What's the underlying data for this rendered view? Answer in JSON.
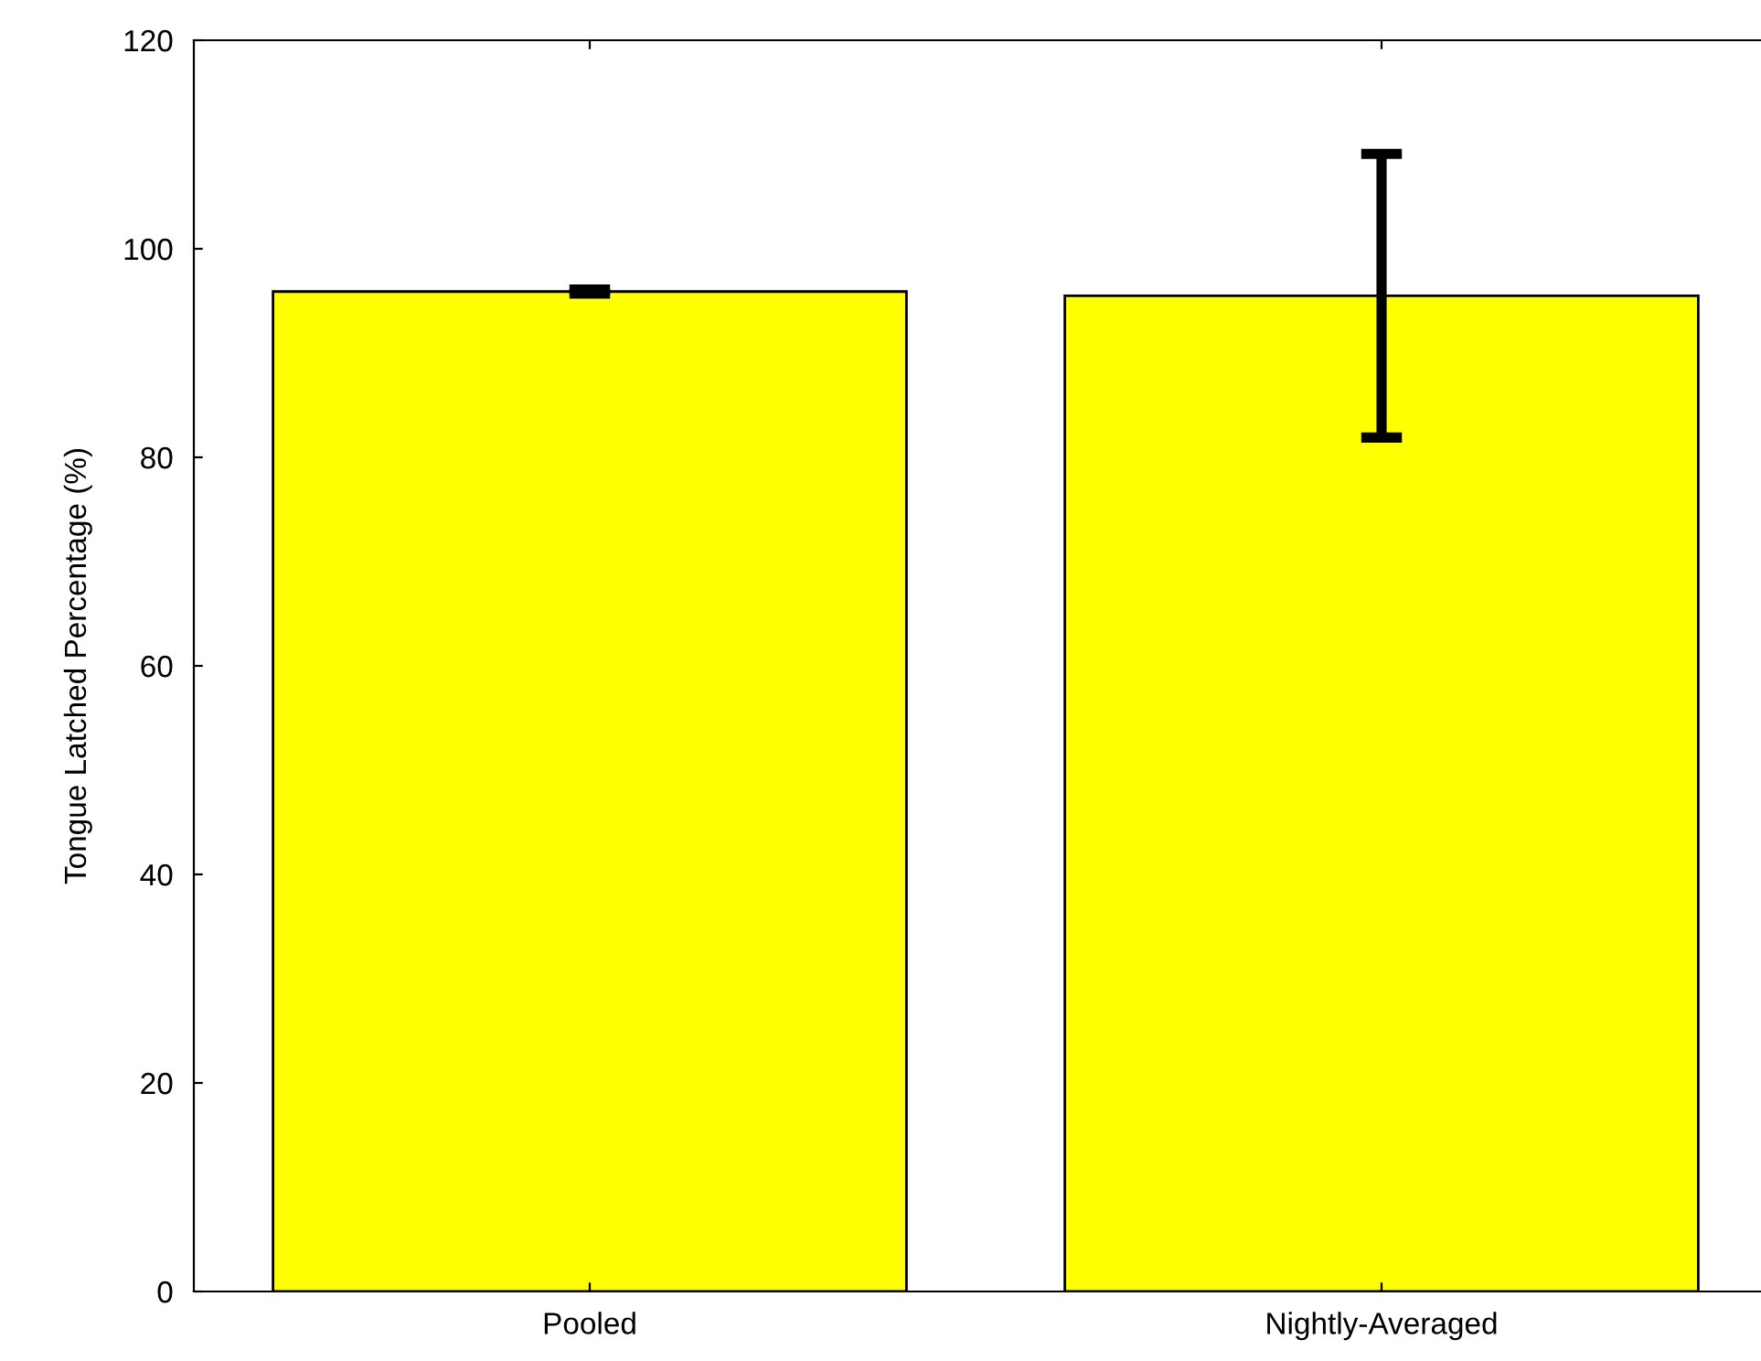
{
  "chart_data": {
    "type": "bar",
    "ylabel": "Tongue Latched Percentage (%)",
    "categories": [
      "Pooled",
      "Nightly-Averaged"
    ],
    "values": [
      95.9,
      95.5
    ],
    "errors": [
      0.2,
      13.6
    ],
    "color": "#ffff00",
    "ylim": [
      0,
      120
    ],
    "yticks": [
      0,
      20,
      40,
      60,
      80,
      100,
      120
    ],
    "grid": false,
    "legend": false
  }
}
